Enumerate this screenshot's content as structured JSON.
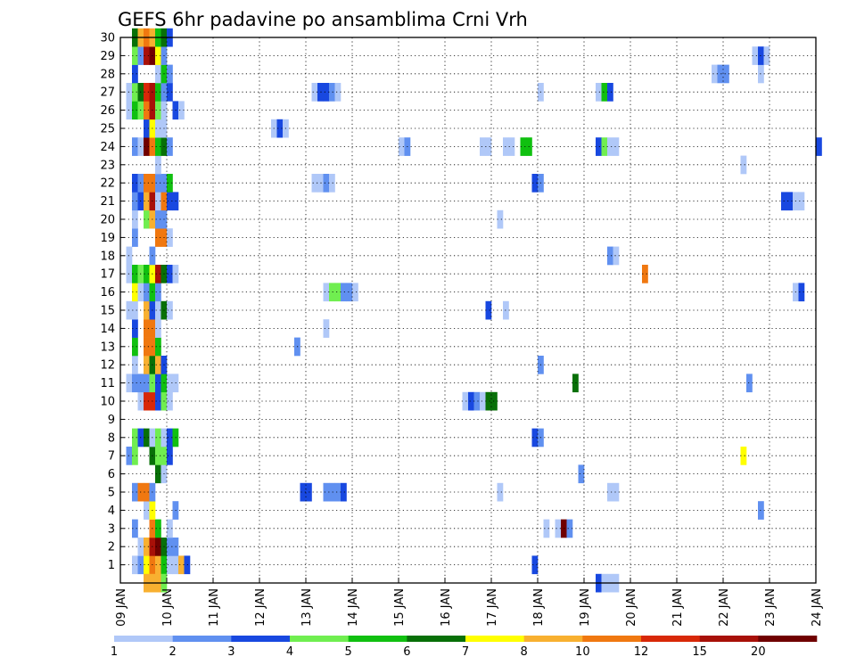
{
  "chart_data": {
    "type": "heatmap",
    "title": "GEFS 6hr padavine po ansamblima Crni Vrh",
    "xlabel": "",
    "ylabel": "",
    "x_tick_labels": [
      "09 JAN",
      "10 JAN",
      "11 JAN",
      "12 JAN",
      "13 JAN",
      "14 JAN",
      "15 JAN",
      "16 JAN",
      "17 JAN",
      "18 JAN",
      "19 JAN",
      "20 JAN",
      "21 JAN",
      "22 JAN",
      "23 JAN",
      "24 JAN"
    ],
    "y_tick_labels": [
      "1",
      "2",
      "3",
      "4",
      "5",
      "6",
      "7",
      "8",
      "9",
      "10",
      "11",
      "12",
      "13",
      "14",
      "15",
      "16",
      "17",
      "18",
      "19",
      "20",
      "21",
      "22",
      "23",
      "24",
      "25",
      "26",
      "27",
      "28",
      "29",
      "30"
    ],
    "grid": "dotted",
    "colorbar": {
      "position": "bottom",
      "tick_labels": [
        "1",
        "2",
        "3",
        "4",
        "5",
        "6",
        "7",
        "8",
        "10",
        "12",
        "15",
        "20"
      ],
      "colors": [
        "#b0c8f8",
        "#6090f0",
        "#1848e0",
        "#70ee50",
        "#10c010",
        "#087008",
        "#ffff00",
        "#f8b030",
        "#f07810",
        "#d82808",
        "#a81008",
        "#700000"
      ]
    },
    "cells": [
      [
        1,
        2,
        1
      ],
      [
        1,
        3,
        2
      ],
      [
        1,
        4,
        7
      ],
      [
        1,
        5,
        9
      ],
      [
        1,
        6,
        8
      ],
      [
        1,
        7,
        5
      ],
      [
        1,
        8,
        1
      ],
      [
        1,
        9,
        1
      ],
      [
        1,
        10,
        8
      ],
      [
        1,
        11,
        3
      ],
      [
        1,
        71,
        3
      ],
      [
        2,
        3,
        1
      ],
      [
        2,
        4,
        8
      ],
      [
        2,
        5,
        11
      ],
      [
        2,
        6,
        12
      ],
      [
        2,
        7,
        6
      ],
      [
        2,
        8,
        2
      ],
      [
        2,
        9,
        2
      ],
      [
        3,
        2,
        2
      ],
      [
        3,
        5,
        9
      ],
      [
        3,
        6,
        5
      ],
      [
        3,
        8,
        1
      ],
      [
        3,
        73,
        1
      ],
      [
        3,
        75,
        1
      ],
      [
        3,
        76,
        12
      ],
      [
        3,
        77,
        2
      ],
      [
        4,
        4,
        1
      ],
      [
        4,
        5,
        7
      ],
      [
        4,
        9,
        2
      ],
      [
        4,
        110,
        2
      ],
      [
        5,
        2,
        2
      ],
      [
        5,
        3,
        9
      ],
      [
        5,
        4,
        9
      ],
      [
        5,
        5,
        2
      ],
      [
        5,
        31,
        3
      ],
      [
        5,
        32,
        3
      ],
      [
        5,
        35,
        2
      ],
      [
        5,
        36,
        2
      ],
      [
        5,
        37,
        2
      ],
      [
        5,
        38,
        3
      ],
      [
        5,
        65,
        1
      ],
      [
        5,
        84,
        1
      ],
      [
        5,
        85,
        1
      ],
      [
        6,
        6,
        6
      ],
      [
        6,
        7,
        1
      ],
      [
        6,
        79,
        2
      ],
      [
        7,
        1,
        2
      ],
      [
        7,
        2,
        4
      ],
      [
        7,
        5,
        6
      ],
      [
        7,
        6,
        4
      ],
      [
        7,
        7,
        4
      ],
      [
        7,
        8,
        3
      ],
      [
        7,
        107,
        7
      ],
      [
        8,
        2,
        4
      ],
      [
        8,
        3,
        3
      ],
      [
        8,
        4,
        6
      ],
      [
        8,
        5,
        1
      ],
      [
        8,
        6,
        4
      ],
      [
        8,
        7,
        1
      ],
      [
        8,
        8,
        3
      ],
      [
        8,
        9,
        5
      ],
      [
        8,
        71,
        3
      ],
      [
        8,
        72,
        2
      ],
      [
        10,
        3,
        1
      ],
      [
        10,
        4,
        10
      ],
      [
        10,
        5,
        10
      ],
      [
        10,
        6,
        3
      ],
      [
        10,
        7,
        4
      ],
      [
        10,
        8,
        1
      ],
      [
        10,
        59,
        1
      ],
      [
        10,
        60,
        3
      ],
      [
        10,
        61,
        2
      ],
      [
        10,
        62,
        1
      ],
      [
        10,
        63,
        6
      ],
      [
        10,
        64,
        6
      ],
      [
        11,
        1,
        1
      ],
      [
        11,
        2,
        2
      ],
      [
        11,
        3,
        2
      ],
      [
        11,
        4,
        2
      ],
      [
        11,
        5,
        4
      ],
      [
        11,
        6,
        3
      ],
      [
        11,
        7,
        5
      ],
      [
        11,
        8,
        1
      ],
      [
        11,
        9,
        1
      ],
      [
        11,
        78,
        6
      ],
      [
        11,
        108,
        2
      ],
      [
        12,
        2,
        1
      ],
      [
        12,
        4,
        8
      ],
      [
        12,
        5,
        6
      ],
      [
        12,
        6,
        8
      ],
      [
        12,
        7,
        3
      ],
      [
        12,
        72,
        2
      ],
      [
        13,
        2,
        5
      ],
      [
        13,
        4,
        9
      ],
      [
        13,
        5,
        9
      ],
      [
        13,
        6,
        5
      ],
      [
        13,
        30,
        2
      ],
      [
        14,
        2,
        3
      ],
      [
        14,
        4,
        9
      ],
      [
        14,
        5,
        9
      ],
      [
        14,
        6,
        1
      ],
      [
        14,
        35,
        1
      ],
      [
        15,
        1,
        1
      ],
      [
        15,
        2,
        1
      ],
      [
        15,
        4,
        8
      ],
      [
        15,
        5,
        3
      ],
      [
        15,
        6,
        1
      ],
      [
        15,
        7,
        6
      ],
      [
        15,
        8,
        1
      ],
      [
        15,
        63,
        3
      ],
      [
        15,
        66,
        1
      ],
      [
        16,
        2,
        7
      ],
      [
        16,
        3,
        1
      ],
      [
        16,
        4,
        2
      ],
      [
        16,
        5,
        5
      ],
      [
        16,
        6,
        2
      ],
      [
        16,
        35,
        1
      ],
      [
        16,
        36,
        4
      ],
      [
        16,
        37,
        4
      ],
      [
        16,
        38,
        2
      ],
      [
        16,
        39,
        2
      ],
      [
        16,
        40,
        1
      ],
      [
        16,
        116,
        1
      ],
      [
        16,
        117,
        3
      ],
      [
        17,
        1,
        1
      ],
      [
        17,
        2,
        5
      ],
      [
        17,
        3,
        4
      ],
      [
        17,
        4,
        5
      ],
      [
        17,
        5,
        7
      ],
      [
        17,
        6,
        11
      ],
      [
        17,
        7,
        6
      ],
      [
        17,
        8,
        3
      ],
      [
        17,
        9,
        1
      ],
      [
        17,
        90,
        9
      ],
      [
        18,
        1,
        1
      ],
      [
        18,
        5,
        2
      ],
      [
        18,
        84,
        2
      ],
      [
        18,
        85,
        1
      ],
      [
        19,
        2,
        2
      ],
      [
        19,
        6,
        9
      ],
      [
        19,
        7,
        9
      ],
      [
        19,
        8,
        1
      ],
      [
        20,
        2,
        1
      ],
      [
        20,
        4,
        4
      ],
      [
        20,
        5,
        8
      ],
      [
        20,
        6,
        2
      ],
      [
        20,
        7,
        2
      ],
      [
        20,
        65,
        1
      ],
      [
        21,
        2,
        2
      ],
      [
        21,
        3,
        3
      ],
      [
        21,
        4,
        8
      ],
      [
        21,
        5,
        11
      ],
      [
        21,
        6,
        1
      ],
      [
        21,
        7,
        9
      ],
      [
        21,
        8,
        3
      ],
      [
        21,
        9,
        3
      ],
      [
        21,
        114,
        3
      ],
      [
        21,
        115,
        3
      ],
      [
        21,
        116,
        1
      ],
      [
        21,
        117,
        1
      ],
      [
        22,
        2,
        3
      ],
      [
        22,
        3,
        2
      ],
      [
        22,
        4,
        9
      ],
      [
        22,
        5,
        9
      ],
      [
        22,
        6,
        2
      ],
      [
        22,
        7,
        2
      ],
      [
        22,
        8,
        5
      ],
      [
        22,
        33,
        1
      ],
      [
        22,
        34,
        1
      ],
      [
        22,
        35,
        2
      ],
      [
        22,
        36,
        1
      ],
      [
        22,
        71,
        3
      ],
      [
        22,
        72,
        2
      ],
      [
        23,
        6,
        1
      ],
      [
        23,
        107,
        1
      ],
      [
        24,
        2,
        2
      ],
      [
        24,
        3,
        1
      ],
      [
        24,
        4,
        12
      ],
      [
        24,
        5,
        9
      ],
      [
        24,
        6,
        5
      ],
      [
        24,
        7,
        6
      ],
      [
        24,
        8,
        2
      ],
      [
        24,
        48,
        1
      ],
      [
        24,
        49,
        2
      ],
      [
        24,
        62,
        1
      ],
      [
        24,
        63,
        1
      ],
      [
        24,
        66,
        1
      ],
      [
        24,
        67,
        1
      ],
      [
        24,
        69,
        5
      ],
      [
        24,
        70,
        5
      ],
      [
        24,
        82,
        3
      ],
      [
        24,
        83,
        4
      ],
      [
        24,
        84,
        1
      ],
      [
        24,
        85,
        1
      ],
      [
        24,
        120,
        3
      ],
      [
        25,
        4,
        3
      ],
      [
        25,
        5,
        7
      ],
      [
        25,
        6,
        1
      ],
      [
        25,
        7,
        1
      ],
      [
        25,
        26,
        1
      ],
      [
        25,
        27,
        3
      ],
      [
        25,
        28,
        1
      ],
      [
        26,
        1,
        1
      ],
      [
        26,
        2,
        5
      ],
      [
        26,
        3,
        4
      ],
      [
        26,
        4,
        9
      ],
      [
        26,
        5,
        11
      ],
      [
        26,
        6,
        4
      ],
      [
        26,
        7,
        1
      ],
      [
        26,
        9,
        3
      ],
      [
        26,
        10,
        1
      ],
      [
        27,
        1,
        1
      ],
      [
        27,
        2,
        4
      ],
      [
        27,
        3,
        6
      ],
      [
        27,
        4,
        10
      ],
      [
        27,
        5,
        11
      ],
      [
        27,
        6,
        5
      ],
      [
        27,
        7,
        2
      ],
      [
        27,
        8,
        3
      ],
      [
        27,
        33,
        1
      ],
      [
        27,
        34,
        3
      ],
      [
        27,
        35,
        3
      ],
      [
        27,
        36,
        2
      ],
      [
        27,
        37,
        1
      ],
      [
        27,
        72,
        1
      ],
      [
        27,
        82,
        1
      ],
      [
        27,
        83,
        5
      ],
      [
        27,
        84,
        3
      ],
      [
        28,
        2,
        3
      ],
      [
        28,
        6,
        1
      ],
      [
        28,
        7,
        5
      ],
      [
        28,
        8,
        2
      ],
      [
        28,
        102,
        1
      ],
      [
        28,
        103,
        2
      ],
      [
        28,
        104,
        2
      ],
      [
        28,
        110,
        1
      ],
      [
        29,
        2,
        4
      ],
      [
        29,
        3,
        2
      ],
      [
        29,
        4,
        11
      ],
      [
        29,
        5,
        12
      ],
      [
        29,
        6,
        7
      ],
      [
        29,
        7,
        2
      ],
      [
        29,
        109,
        1
      ],
      [
        29,
        110,
        3
      ],
      [
        29,
        111,
        1
      ],
      [
        30,
        2,
        6
      ],
      [
        30,
        3,
        8
      ],
      [
        30,
        4,
        9
      ],
      [
        30,
        5,
        8
      ],
      [
        30,
        6,
        5
      ],
      [
        30,
        7,
        6
      ],
      [
        30,
        8,
        3
      ],
      [
        0,
        4,
        8
      ],
      [
        0,
        5,
        8
      ],
      [
        0,
        6,
        8
      ],
      [
        0,
        7,
        4
      ],
      [
        0,
        82,
        3
      ],
      [
        0,
        83,
        1
      ],
      [
        0,
        84,
        1
      ],
      [
        0,
        85,
        1
      ]
    ],
    "cells_note_units": "[member, x_step_6h, level]"
  }
}
